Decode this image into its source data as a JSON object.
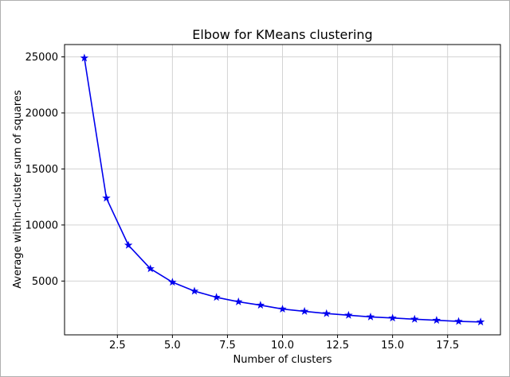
{
  "figure": {
    "title": "Elbow for KMeans clustering",
    "xlabel": "Number of clusters",
    "ylabel": "Average within-cluster sum of squares"
  },
  "chart_data": {
    "type": "line",
    "title": "Elbow for KMeans clustering",
    "xlabel": "Number of clusters",
    "ylabel": "Average within-cluster sum of squares",
    "x": [
      1,
      2,
      3,
      4,
      5,
      6,
      7,
      8,
      9,
      10,
      11,
      12,
      13,
      14,
      15,
      16,
      17,
      18,
      19
    ],
    "y": [
      24900,
      12400,
      8200,
      6100,
      4900,
      4100,
      3550,
      3150,
      2850,
      2500,
      2300,
      2100,
      1950,
      1800,
      1700,
      1600,
      1500,
      1400,
      1350
    ],
    "xticks": [
      2.5,
      5.0,
      7.5,
      10.0,
      12.5,
      15.0,
      17.5
    ],
    "yticks": [
      5000,
      10000,
      15000,
      20000,
      25000
    ],
    "xlim": [
      0.1,
      19.9
    ],
    "ylim": [
      200,
      26100
    ],
    "grid": true,
    "line_color": "#0000ee",
    "marker": "star",
    "marker_color": "#0000ee",
    "grid_color": "#d3d3d3",
    "spine_color": "#000000",
    "tick_label_color": "#000000",
    "legend": "none"
  }
}
